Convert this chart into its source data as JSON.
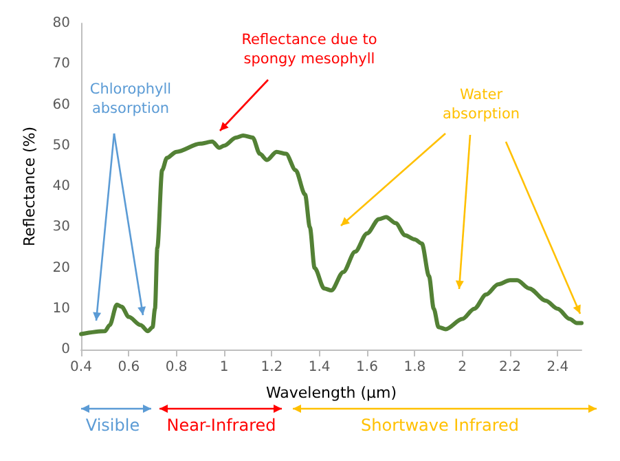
{
  "chart_data": {
    "type": "line",
    "xlabel": "Wavelength (μm)",
    "ylabel": "Reflectance (%)",
    "x": [
      0.4,
      0.5,
      0.52,
      0.55,
      0.57,
      0.6,
      0.65,
      0.68,
      0.7,
      0.71,
      0.72,
      0.74,
      0.76,
      0.8,
      0.9,
      0.95,
      0.98,
      1.0,
      1.05,
      1.08,
      1.12,
      1.15,
      1.18,
      1.22,
      1.26,
      1.3,
      1.34,
      1.36,
      1.38,
      1.42,
      1.45,
      1.5,
      1.55,
      1.6,
      1.65,
      1.68,
      1.72,
      1.76,
      1.8,
      1.83,
      1.86,
      1.88,
      1.9,
      1.93,
      2.0,
      2.05,
      2.1,
      2.15,
      2.2,
      2.23,
      2.28,
      2.35,
      2.4,
      2.45,
      2.48,
      2.5
    ],
    "series": [
      {
        "color": "#538135",
        "values": [
          3.8,
          4.5,
          6,
          11,
          10.5,
          8,
          6,
          4.5,
          5.5,
          10,
          25,
          44,
          47,
          48.5,
          50.5,
          51,
          49.5,
          50,
          52,
          52.5,
          52,
          48,
          46.5,
          48.5,
          48,
          44,
          38,
          30,
          20,
          15,
          14.5,
          19,
          24,
          28.5,
          32,
          32.5,
          31,
          28,
          27,
          26,
          18,
          10,
          5.5,
          5,
          7.5,
          10,
          13.5,
          16,
          17,
          17,
          15,
          12,
          10,
          7.5,
          6.5,
          6.5
        ]
      }
    ],
    "xlim": [
      0.4,
      2.5
    ],
    "xticks": [
      0.4,
      0.6,
      0.8,
      1,
      1.2,
      1.4,
      1.6,
      1.8,
      2,
      2.2,
      2.4
    ],
    "ylim": [
      0,
      80
    ],
    "yticks": [
      0,
      10,
      20,
      30,
      40,
      50,
      60,
      70,
      80
    ],
    "grid": false,
    "marker": "none",
    "line_style": "solid",
    "annotations": [
      "Chlorophyll absorption",
      "Reflectance due to spongy mesophyll",
      "Water absorption",
      "Visible",
      "Near-Infrared",
      "Shortwave Infrared"
    ]
  }
}
